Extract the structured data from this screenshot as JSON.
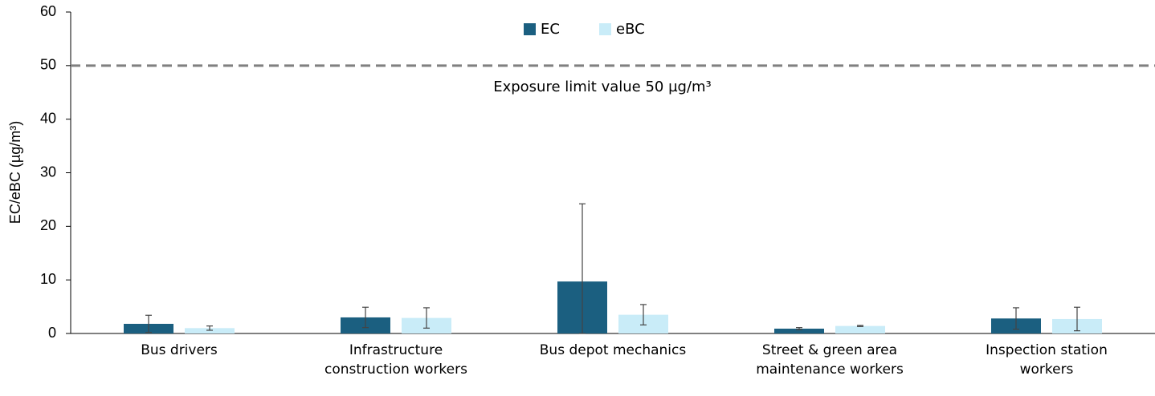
{
  "chart_data": {
    "type": "bar",
    "y_label": "EC/eBC (µg/m³)",
    "categories": [
      "Bus drivers",
      "Infrastructure construction workers",
      "Bus depot mechanics",
      "Street & green area maintenance workers",
      "Inspection station workers"
    ],
    "series": [
      {
        "name": "EC",
        "color": "#1b5f80",
        "values": [
          1.8,
          3.0,
          9.7,
          0.9,
          2.8
        ],
        "errors": [
          1.6,
          1.9,
          14.5,
          0.2,
          2.0
        ]
      },
      {
        "name": "eBC",
        "color": "#c9ecf8",
        "values": [
          1.0,
          2.9,
          3.5,
          1.4,
          2.7
        ],
        "errors": [
          0.4,
          1.9,
          1.9,
          0.1,
          2.2
        ]
      }
    ],
    "ylim": [
      0,
      60
    ],
    "yticks": [
      0,
      10,
      20,
      30,
      40,
      50,
      60
    ],
    "limit_line": 50,
    "limit_label": "Exposure limit value 50 µg/m³",
    "limit_color": "#808080"
  }
}
